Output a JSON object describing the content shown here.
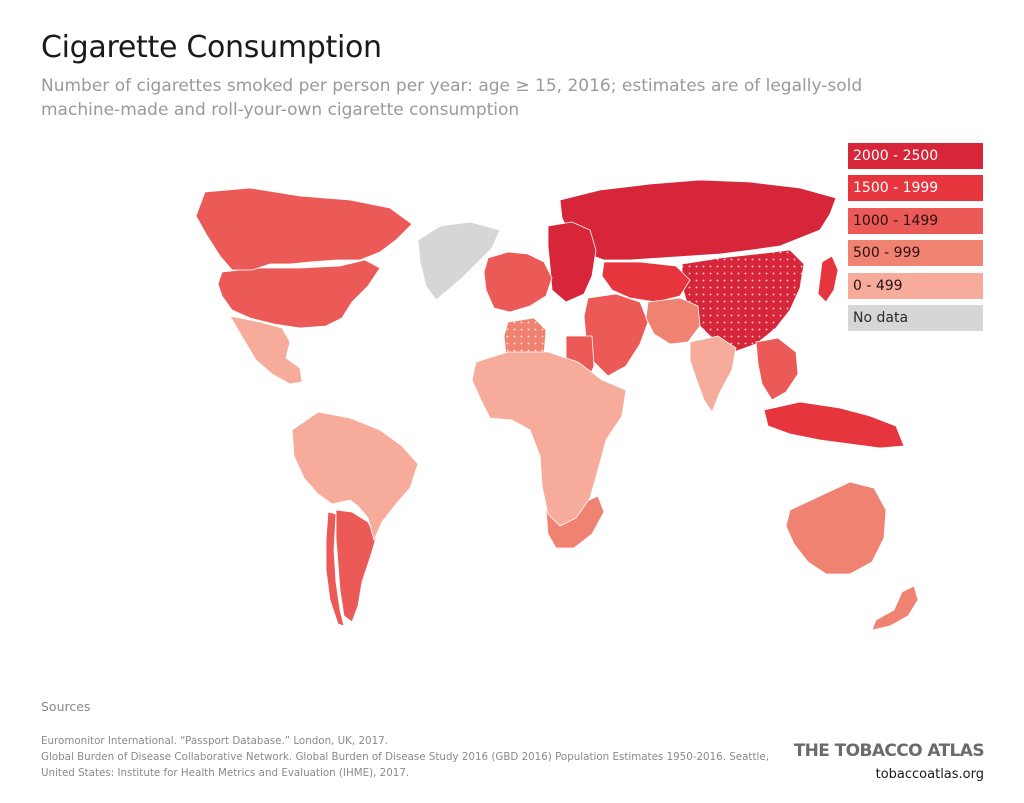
{
  "header": {
    "title": "Cigarette Consumption",
    "subtitle": "Number of cigarettes smoked per person per year: age ≥ 15, 2016; estimates are of legally-sold machine-made and roll-your-own cigarette consumption"
  },
  "legend": [
    {
      "label": "2000 - 2500",
      "color": "#d7263a",
      "text_color": "#ffffff"
    },
    {
      "label": "1500 - 1999",
      "color": "#e7353d",
      "text_color": "#ffffff"
    },
    {
      "label": "1000 - 1499",
      "color": "#ec5a57",
      "text_color": "#2a1010"
    },
    {
      "label": "500 - 999",
      "color": "#f08272",
      "text_color": "#2a1010"
    },
    {
      "label": "0 - 499",
      "color": "#f6ab9b",
      "text_color": "#2a1010"
    },
    {
      "label": "No data",
      "color": "#d6d6d6",
      "text_color": "#2a2a2a"
    }
  ],
  "map": {
    "regions": [
      {
        "name": "Russia",
        "bin": "2000 - 2500"
      },
      {
        "name": "China",
        "bin": "2000 - 2500"
      },
      {
        "name": "Kazakhstan",
        "bin": "1500 - 1999"
      },
      {
        "name": "Eastern Europe",
        "bin": "2000 - 2500"
      },
      {
        "name": "Japan",
        "bin": "1500 - 1999"
      },
      {
        "name": "Indonesia",
        "bin": "1500 - 1999"
      },
      {
        "name": "United States",
        "bin": "1000 - 1499"
      },
      {
        "name": "Canada",
        "bin": "1000 - 1499"
      },
      {
        "name": "Western Europe",
        "bin": "1000 - 1499"
      },
      {
        "name": "Argentina",
        "bin": "1000 - 1499"
      },
      {
        "name": "Chile",
        "bin": "1000 - 1499"
      },
      {
        "name": "Middle East",
        "bin": "1000 - 1499"
      },
      {
        "name": "Southeast Asia",
        "bin": "1000 - 1499"
      },
      {
        "name": "Australia",
        "bin": "500 - 999"
      },
      {
        "name": "New Zealand",
        "bin": "500 - 999"
      },
      {
        "name": "South Africa",
        "bin": "500 - 999"
      },
      {
        "name": "Algeria",
        "bin": "500 - 999"
      },
      {
        "name": "Egypt",
        "bin": "1000 - 1499"
      },
      {
        "name": "South Asia",
        "bin": "500 - 999"
      },
      {
        "name": "India",
        "bin": "0 - 499"
      },
      {
        "name": "Mexico",
        "bin": "0 - 499"
      },
      {
        "name": "South America",
        "bin": "0 - 499"
      },
      {
        "name": "Africa",
        "bin": "0 - 499"
      },
      {
        "name": "Greenland",
        "bin": "No data"
      }
    ]
  },
  "sources": {
    "heading": "Sources",
    "lines": [
      "Euromonitor International. “Passport Database.” London, UK, 2017.",
      "Global Burden of Disease Collaborative Network. Global Burden of Disease Study 2016 (GBD 2016) Population Estimates 1950-2016. Seattle,",
      "United States: Institute for Health Metrics and Evaluation (IHME), 2017."
    ]
  },
  "brand": {
    "name": "THE TOBACCO ATLAS",
    "url": "tobaccoatlas.org"
  }
}
